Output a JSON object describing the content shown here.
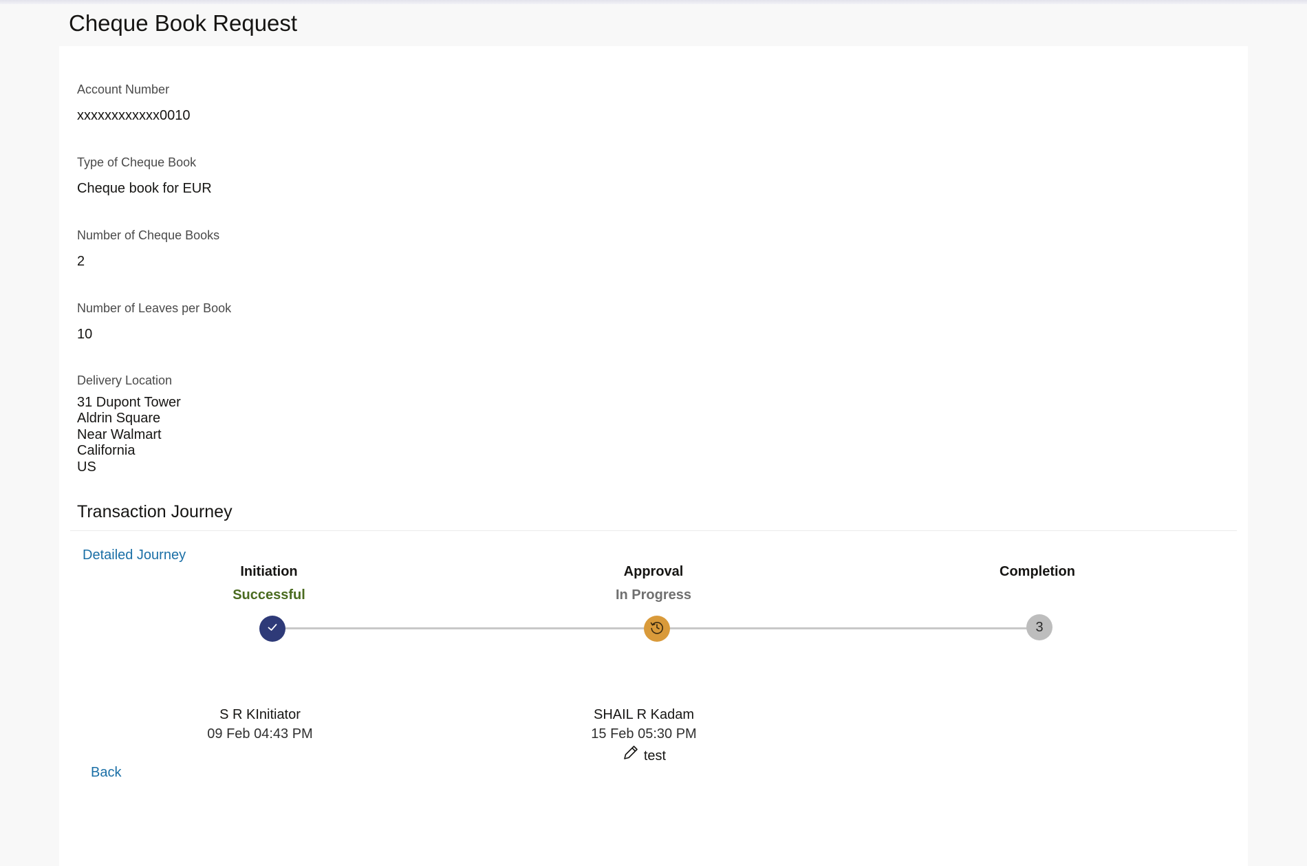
{
  "page": {
    "title": "Cheque Book Request"
  },
  "fields": {
    "account_number": {
      "label": "Account Number",
      "value": "xxxxxxxxxxxx0010"
    },
    "cheque_book_type": {
      "label": "Type of Cheque Book",
      "value": "Cheque book for EUR"
    },
    "number_of_books": {
      "label": "Number of Cheque Books",
      "value": "2"
    },
    "leaves_per_book": {
      "label": "Number of Leaves per Book",
      "value": "10"
    },
    "delivery_location": {
      "label": "Delivery Location",
      "lines": [
        "31 Dupont Tower",
        "Aldrin Square",
        "Near Walmart",
        "California",
        "US"
      ]
    }
  },
  "journey": {
    "title": "Transaction Journey",
    "detailed_link": "Detailed Journey",
    "steps": [
      {
        "title": "Initiation",
        "status": "Successful",
        "state": "done"
      },
      {
        "title": "Approval",
        "status": "In Progress",
        "state": "in-progress"
      },
      {
        "title": "Completion",
        "status": "",
        "state": "pending",
        "number": "3"
      }
    ],
    "actors": [
      {
        "name": "S R KInitiator",
        "date": "09 Feb 04:43 PM"
      },
      {
        "name": "SHAIL R Kadam",
        "date": "15 Feb 05:30 PM",
        "comment": "test"
      }
    ]
  },
  "actions": {
    "back": "Back"
  },
  "icons": {
    "done": "check-icon",
    "in_progress": "history-clock-icon",
    "comment": "pencil-icon"
  },
  "colors": {
    "link": "#1a6fa6",
    "success": "#4a6b1f",
    "done_node": "#2e3a78",
    "progress_node": "#d99a3a",
    "pending_node": "#bdbdbd"
  }
}
